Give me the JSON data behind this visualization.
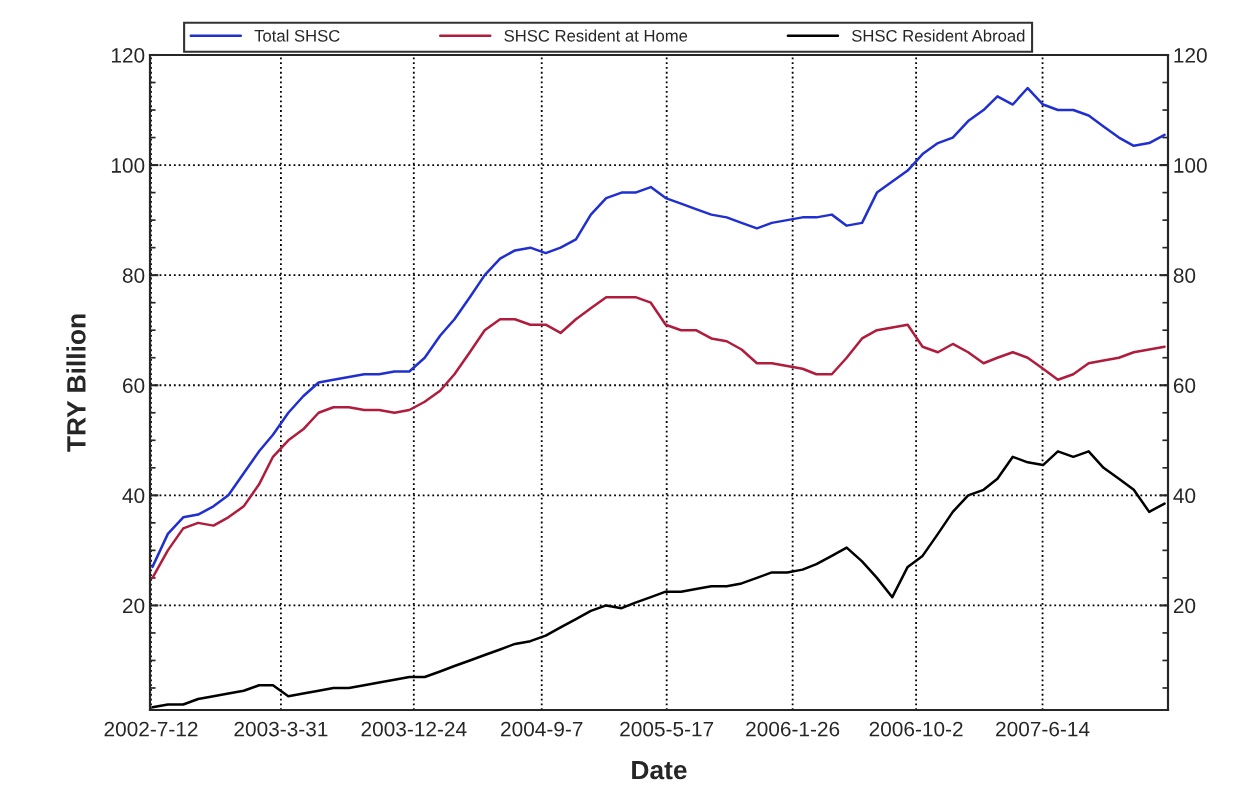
{
  "chart_data": {
    "type": "line",
    "xlabel": "Date",
    "ylabel": "TRY Billion",
    "x": [
      "2002-07-15",
      "2002-08-15",
      "2002-09-15",
      "2002-10-15",
      "2002-11-15",
      "2002-12-15",
      "2003-01-15",
      "2003-02-15",
      "2003-03-15",
      "2003-04-15",
      "2003-05-15",
      "2003-06-15",
      "2003-07-15",
      "2003-08-15",
      "2003-09-15",
      "2003-10-15",
      "2003-11-15",
      "2003-12-15",
      "2004-01-15",
      "2004-02-15",
      "2004-03-15",
      "2004-04-15",
      "2004-05-15",
      "2004-06-15",
      "2004-07-15",
      "2004-08-15",
      "2004-09-15",
      "2004-10-15",
      "2004-11-15",
      "2004-12-15",
      "2005-01-15",
      "2005-02-15",
      "2005-03-15",
      "2005-04-15",
      "2005-05-15",
      "2005-06-15",
      "2005-07-15",
      "2005-08-15",
      "2005-09-15",
      "2005-10-15",
      "2005-11-15",
      "2005-12-15",
      "2006-01-15",
      "2006-02-15",
      "2006-03-15",
      "2006-04-15",
      "2006-05-15",
      "2006-06-15",
      "2006-07-15",
      "2006-08-15",
      "2006-09-15",
      "2006-10-15",
      "2006-11-15",
      "2006-12-15",
      "2007-01-15",
      "2007-02-15",
      "2007-03-15",
      "2007-04-15",
      "2007-05-15",
      "2007-06-15",
      "2007-07-15",
      "2007-08-15",
      "2007-09-15",
      "2007-10-15",
      "2007-11-15",
      "2007-12-15",
      "2008-01-15",
      "2008-02-15"
    ],
    "series": [
      {
        "name": "Total SHSC",
        "color": "#2030d0",
        "values": [
          27,
          33,
          36,
          36.5,
          38,
          40,
          44,
          48,
          51,
          55,
          58,
          60.5,
          61,
          61.5,
          62,
          62,
          62.5,
          62.5,
          65,
          69,
          72,
          76,
          80,
          83,
          84.5,
          85,
          84,
          85,
          86.5,
          91,
          94,
          95,
          95,
          96,
          94,
          93,
          92,
          91,
          90.5,
          89.5,
          88.5,
          89.5,
          90,
          90.5,
          90.5,
          91,
          89,
          89.5,
          95,
          97,
          99,
          102,
          104,
          105,
          108,
          110,
          112.5,
          111,
          114,
          111,
          110,
          110,
          109,
          107,
          105,
          103.5,
          104,
          105.5
        ]
      },
      {
        "name": "SHSC Resident at Home",
        "color": "#b01c3c",
        "values": [
          25,
          30,
          34,
          35,
          34.5,
          36,
          38,
          42,
          47,
          50,
          52,
          55,
          56,
          56,
          55.5,
          55.5,
          55,
          55.5,
          57,
          59,
          62,
          66,
          70,
          72,
          72,
          71,
          71,
          69.5,
          72,
          74,
          76,
          76,
          76,
          75,
          71,
          70,
          70,
          68.5,
          68,
          66.5,
          64,
          64,
          63.5,
          63,
          62,
          62,
          65,
          68.5,
          70,
          70.5,
          71,
          67,
          66,
          67.5,
          66,
          64,
          65,
          66,
          65,
          63,
          61,
          62,
          64,
          64.5,
          65,
          66,
          66.5,
          67
        ]
      },
      {
        "name": "SHSC Resident Abroad",
        "color": "#000000",
        "values": [
          1.5,
          2,
          2,
          3,
          3.5,
          4,
          4.5,
          5.5,
          5.5,
          3.5,
          4,
          4.5,
          5,
          5,
          5.5,
          6,
          6.5,
          7,
          7,
          8,
          9,
          10,
          11,
          12,
          13,
          13.5,
          14.5,
          16,
          17.5,
          19,
          20,
          19.5,
          20.5,
          21.5,
          22.5,
          22.5,
          23,
          23.5,
          23.5,
          24,
          25,
          26,
          26,
          26.5,
          27.5,
          29,
          30.5,
          28,
          25,
          21.5,
          27,
          29,
          33,
          37,
          40,
          41,
          43,
          47,
          46,
          45.5,
          48,
          47,
          48,
          45,
          43,
          41,
          37,
          38.5
        ]
      }
    ],
    "xlim": [
      "2002-07-10",
      "2008-02-22"
    ],
    "xticks": [
      {
        "value": "2002-07-12",
        "label": "2002-7-12"
      },
      {
        "value": "2003-03-31",
        "label": "2003-3-31"
      },
      {
        "value": "2003-12-24",
        "label": "2003-12-24"
      },
      {
        "value": "2004-09-07",
        "label": "2004-9-7"
      },
      {
        "value": "2005-05-17",
        "label": "2005-5-17"
      },
      {
        "value": "2006-01-26",
        "label": "2006-1-26"
      },
      {
        "value": "2006-10-02",
        "label": "2006-10-2"
      },
      {
        "value": "2007-06-14",
        "label": "2007-6-14"
      }
    ],
    "ylim": [
      1,
      120
    ],
    "yticks": [
      {
        "value": 5,
        "label": null
      },
      {
        "value": 10,
        "label": null
      },
      {
        "value": 15,
        "label": null
      },
      20,
      {
        "value": 25,
        "label": null
      },
      {
        "value": 30,
        "label": null
      },
      {
        "value": 35,
        "label": null
      },
      40,
      {
        "value": 45,
        "label": null
      },
      {
        "value": 50,
        "label": null
      },
      {
        "value": 55,
        "label": null
      },
      60,
      {
        "value": 65,
        "label": null
      },
      {
        "value": 70,
        "label": null
      },
      {
        "value": 75,
        "label": null
      },
      80,
      {
        "value": 85,
        "label": null
      },
      {
        "value": 90,
        "label": null
      },
      {
        "value": 95,
        "label": null
      },
      100,
      {
        "value": 105,
        "label": null
      },
      {
        "value": 110,
        "label": null
      },
      {
        "value": 115,
        "label": null
      },
      120
    ],
    "y2lim": [
      1,
      120
    ],
    "y2ticks": [
      {
        "value": 5,
        "label": null
      },
      {
        "value": 10,
        "label": null
      },
      {
        "value": 15,
        "label": null
      },
      20,
      {
        "value": 25,
        "label": null
      },
      {
        "value": 30,
        "label": null
      },
      {
        "value": 35,
        "label": null
      },
      40,
      {
        "value": 45,
        "label": null
      },
      {
        "value": 50,
        "label": null
      },
      {
        "value": 55,
        "label": null
      },
      60,
      {
        "value": 65,
        "label": null
      },
      {
        "value": 70,
        "label": null
      },
      {
        "value": 75,
        "label": null
      },
      80,
      {
        "value": 85,
        "label": null
      },
      {
        "value": 90,
        "label": null
      },
      {
        "value": 95,
        "label": null
      },
      100,
      {
        "value": 105,
        "label": null
      },
      {
        "value": 110,
        "label": null
      },
      {
        "value": 115,
        "label": null
      },
      120
    ],
    "grid": true,
    "legend": "top",
    "line_style": "solid",
    "marker": "none"
  }
}
